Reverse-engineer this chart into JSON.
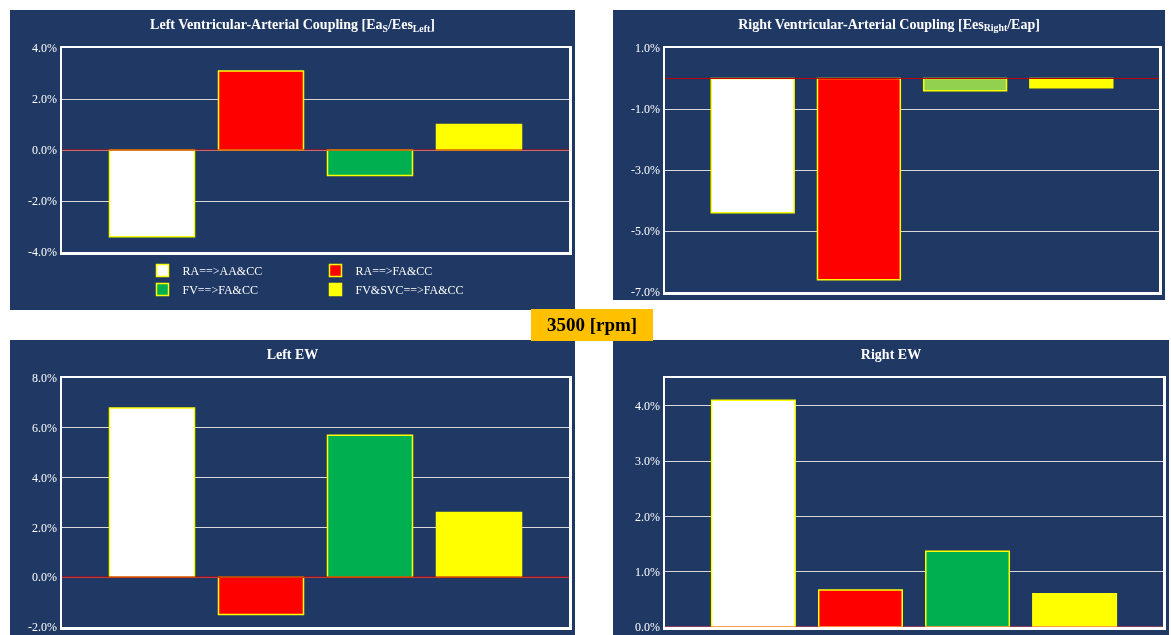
{
  "chart_data": [
    {
      "type": "bar",
      "title": "Left Ventricular-Arterial Coupling [Ea$_{S}$/Ees$_{Left}$]",
      "categories": [
        null
      ],
      "series": [
        {
          "name": "RA==>AA&CC",
          "color": "#ffffff",
          "values": [
            -3.4
          ]
        },
        {
          "name": "RA==>FA&CC",
          "color": "#ff0000",
          "values": [
            3.1
          ]
        },
        {
          "name": "FV==>FA&CC",
          "color": "#00b050",
          "values": [
            -1.0
          ]
        },
        {
          "name": "FV&SVC==>FA&CC",
          "color": "#ffff00",
          "values": [
            1.0
          ]
        }
      ],
      "ylim": [
        -4,
        4
      ],
      "yticks": [
        {
          "value": -4,
          "label": "-4.0%"
        },
        {
          "value": -2,
          "label": "-2.0%"
        },
        {
          "value": 0,
          "label": "0.0%"
        },
        {
          "value": 2,
          "label": "2.0%"
        },
        {
          "value": 4,
          "label": "4.0%"
        }
      ],
      "ref_lines": [
        {
          "axis": "y",
          "value": 0,
          "color": "#c00000"
        }
      ],
      "grid": "y",
      "legend": "bottom",
      "annotations": [
        "3500 [rpm]"
      ]
    },
    {
      "type": "bar",
      "title": "Right Ventricular-Arterial Coupling [Ees$_{Right}$/Eap]",
      "categories": [
        null
      ],
      "series": [
        {
          "color": "#ffffff",
          "values": [
            -4.4
          ]
        },
        {
          "color": "#ff0000",
          "values": [
            -6.6
          ]
        },
        {
          "color": "#92d050",
          "values": [
            -0.4
          ]
        },
        {
          "color": "#ffff00",
          "values": [
            -0.3
          ]
        }
      ],
      "ylim": [
        -7,
        1
      ],
      "yticks": [
        {
          "value": -7,
          "label": "-7.0%"
        },
        {
          "value": -5,
          "label": "-5.0%"
        },
        {
          "value": -3,
          "label": "-3.0%"
        },
        {
          "value": -1,
          "label": "-1.0%"
        },
        {
          "value": 1,
          "label": "1.0%"
        }
      ],
      "ref_lines": [
        {
          "axis": "y",
          "value": 0,
          "color": "#c00000"
        }
      ],
      "grid": "y",
      "legend": false
    },
    {
      "type": "bar",
      "title": "Left EW",
      "categories": [
        null
      ],
      "series": [
        {
          "color": "#ffffff",
          "values": [
            6.8
          ]
        },
        {
          "color": "#ff0000",
          "values": [
            -1.5
          ]
        },
        {
          "color": "#00b050",
          "values": [
            5.7
          ]
        },
        {
          "color": "#ffff00",
          "values": [
            2.6
          ]
        }
      ],
      "ylim": [
        -2,
        8
      ],
      "yticks": [
        {
          "value": -2,
          "label": "-2.0%"
        },
        {
          "value": 0,
          "label": "0.0%"
        },
        {
          "value": 2,
          "label": "2.0%"
        },
        {
          "value": 4,
          "label": "4.0%"
        },
        {
          "value": 6,
          "label": "6.0%"
        },
        {
          "value": 8,
          "label": "8.0%"
        }
      ],
      "ref_lines": [
        {
          "axis": "y",
          "value": 0,
          "color": "#c00000"
        }
      ],
      "grid": "y",
      "legend": false
    },
    {
      "type": "bar",
      "title": "Right EW",
      "categories": [
        null
      ],
      "series": [
        {
          "color": "#ffffff",
          "values": [
            4.1
          ]
        },
        {
          "color": "#ff0000",
          "values": [
            0.67
          ]
        },
        {
          "color": "#00b050",
          "values": [
            1.37
          ]
        },
        {
          "color": "#ffff00",
          "values": [
            0.6
          ]
        }
      ],
      "ylim": [
        0,
        4.5
      ],
      "yticks": [
        {
          "value": 0,
          "label": "0.0%"
        },
        {
          "value": 1,
          "label": "1.0%"
        },
        {
          "value": 2,
          "label": "2.0%"
        },
        {
          "value": 3,
          "label": "3.0%"
        },
        {
          "value": 4,
          "label": "4.0%"
        }
      ],
      "ref_lines": [
        {
          "axis": "y",
          "value": 0,
          "color": "#ff4060"
        }
      ],
      "grid": "y",
      "legend": false
    }
  ]
}
